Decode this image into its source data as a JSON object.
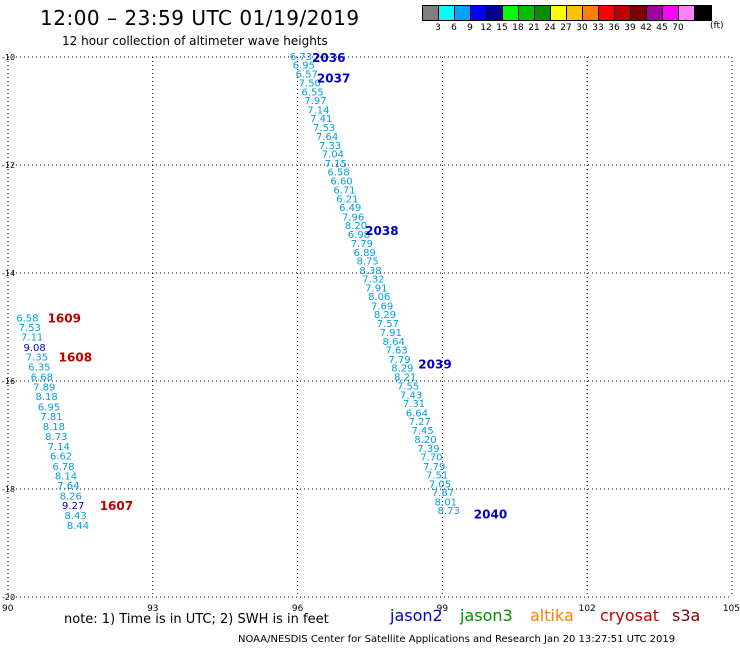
{
  "header": {
    "title": "12:00 – 23:59 UTC 01/19/2019",
    "subtitle": "12 hour collection of altimeter wave heights"
  },
  "legend": {
    "colors": [
      "#808080",
      "#00ffff",
      "#00a0ff",
      "#0000ff",
      "#000090",
      "#00ff00",
      "#00c000",
      "#009000",
      "#ffff00",
      "#ffc000",
      "#ff8000",
      "#ff0000",
      "#c00000",
      "#800000",
      "#a000a0",
      "#ff00ff",
      "#ff80ff",
      "#000000"
    ],
    "labels": [
      "3",
      "6",
      "9",
      "12",
      "15",
      "18",
      "21",
      "24",
      "27",
      "30",
      "33",
      "36",
      "39",
      "42",
      "45",
      "70"
    ],
    "unit": "(ft)"
  },
  "footer": {
    "note": "note:  1) Time is in UTC;  2) SWH is in feet",
    "satellites": [
      {
        "name": "jason2",
        "color": "#0000c8"
      },
      {
        "name": "jason3",
        "color": "#009000"
      },
      {
        "name": "altika",
        "color": "#ff8000"
      },
      {
        "name": "cryosat",
        "color": "#c00000"
      },
      {
        "name": "s3a",
        "color": "#800000"
      }
    ],
    "credit": "NOAA/NESDIS Center for Satellite Applications and Research    Jan 20 13:27:51 UTC 2019"
  },
  "chart_data": {
    "type": "scatter",
    "xlim": [
      90,
      105
    ],
    "ylim": [
      -20,
      -10
    ],
    "x_ticks": [
      "90",
      "93",
      "96",
      "99",
      "102",
      "105"
    ],
    "y_ticks": [
      "-10",
      "-12",
      "-14",
      "-16",
      "-18",
      "-20"
    ],
    "grid": true,
    "series": [
      {
        "name": "jason2",
        "color": "#00a0e0",
        "points": [
          {
            "x": 95.84,
            "y": -9.98,
            "v": "6.73"
          },
          {
            "x": 95.9,
            "y": -10.14,
            "v": "6.95"
          },
          {
            "x": 95.96,
            "y": -10.31,
            "v": "6.57"
          },
          {
            "x": 96.02,
            "y": -10.47,
            "v": "7.50"
          },
          {
            "x": 96.08,
            "y": -10.64,
            "v": "6.55"
          },
          {
            "x": 96.14,
            "y": -10.8,
            "v": "7.97"
          },
          {
            "x": 96.2,
            "y": -10.97,
            "v": "7.14"
          },
          {
            "x": 96.26,
            "y": -11.13,
            "v": "7.41"
          },
          {
            "x": 96.32,
            "y": -11.3,
            "v": "7.53"
          },
          {
            "x": 96.38,
            "y": -11.46,
            "v": "7.64"
          },
          {
            "x": 96.44,
            "y": -11.63,
            "v": "7.33"
          },
          {
            "x": 96.5,
            "y": -11.79,
            "v": "7.04"
          },
          {
            "x": 96.56,
            "y": -11.96,
            "v": "7.15"
          },
          {
            "x": 96.62,
            "y": -12.12,
            "v": "6.58"
          },
          {
            "x": 96.68,
            "y": -12.29,
            "v": "6.60"
          },
          {
            "x": 96.74,
            "y": -12.45,
            "v": "6.71"
          },
          {
            "x": 96.8,
            "y": -12.62,
            "v": "6.21"
          },
          {
            "x": 96.86,
            "y": -12.78,
            "v": "6.49"
          },
          {
            "x": 96.92,
            "y": -12.95,
            "v": "7.96"
          },
          {
            "x": 96.98,
            "y": -13.11,
            "v": "8.20"
          },
          {
            "x": 97.04,
            "y": -13.28,
            "v": "6.98"
          },
          {
            "x": 97.1,
            "y": -13.44,
            "v": "7.79"
          },
          {
            "x": 97.16,
            "y": -13.61,
            "v": "6.89"
          },
          {
            "x": 97.22,
            "y": -13.77,
            "v": "8.75"
          },
          {
            "x": 97.28,
            "y": -13.94,
            "v": "8.38"
          },
          {
            "x": 97.34,
            "y": -14.1,
            "v": "7.32"
          },
          {
            "x": 97.4,
            "y": -14.27,
            "v": "7.91"
          },
          {
            "x": 97.46,
            "y": -14.43,
            "v": "8.06"
          },
          {
            "x": 97.52,
            "y": -14.6,
            "v": "7.69"
          },
          {
            "x": 97.58,
            "y": -14.76,
            "v": "8.29"
          },
          {
            "x": 97.64,
            "y": -14.93,
            "v": "7.57"
          },
          {
            "x": 97.7,
            "y": -15.09,
            "v": "7.91"
          },
          {
            "x": 97.76,
            "y": -15.26,
            "v": "8.64"
          },
          {
            "x": 97.82,
            "y": -15.42,
            "v": "7.63"
          },
          {
            "x": 97.88,
            "y": -15.59,
            "v": "7.79"
          },
          {
            "x": 97.94,
            "y": -15.75,
            "v": "8.29"
          },
          {
            "x": 98.0,
            "y": -15.92,
            "v": "8.21"
          },
          {
            "x": 98.06,
            "y": -16.08,
            "v": "7.55"
          },
          {
            "x": 98.12,
            "y": -16.25,
            "v": "7.43"
          },
          {
            "x": 98.18,
            "y": -16.41,
            "v": "7.31"
          },
          {
            "x": 98.24,
            "y": -16.58,
            "v": "6.64"
          },
          {
            "x": 98.3,
            "y": -16.74,
            "v": "7.27"
          },
          {
            "x": 98.36,
            "y": -16.91,
            "v": "7.45"
          },
          {
            "x": 98.42,
            "y": -17.07,
            "v": "8.20"
          },
          {
            "x": 98.48,
            "y": -17.24,
            "v": "7.39"
          },
          {
            "x": 98.54,
            "y": -17.4,
            "v": "7.70"
          },
          {
            "x": 98.6,
            "y": -17.57,
            "v": "7.79"
          },
          {
            "x": 98.66,
            "y": -17.73,
            "v": "7.51"
          },
          {
            "x": 98.72,
            "y": -17.9,
            "v": "7.05"
          },
          {
            "x": 98.78,
            "y": -18.06,
            "v": "7.87"
          },
          {
            "x": 98.84,
            "y": -18.23,
            "v": "8.01"
          },
          {
            "x": 98.9,
            "y": -18.39,
            "v": "8.73"
          }
        ],
        "time_labels": [
          {
            "x": 96.3,
            "y": -10.0,
            "label": "2036"
          },
          {
            "x": 96.4,
            "y": -10.38,
            "label": "2037"
          },
          {
            "x": 97.4,
            "y": -13.2,
            "label": "2038"
          },
          {
            "x": 98.5,
            "y": -15.68,
            "label": "2039"
          },
          {
            "x": 99.65,
            "y": -18.45,
            "label": "2040"
          }
        ]
      },
      {
        "name": "cryosat",
        "color": "#00a0e0",
        "points": [
          {
            "x": 90.17,
            "y": -14.82,
            "v": "6.58"
          },
          {
            "x": 90.22,
            "y": -15.0,
            "v": "7.53"
          },
          {
            "x": 90.27,
            "y": -15.18,
            "v": "7.11"
          },
          {
            "x": 90.32,
            "y": -15.37,
            "v": "9.08"
          },
          {
            "x": 90.37,
            "y": -15.55,
            "v": "7.35"
          },
          {
            "x": 90.42,
            "y": -15.73,
            "v": "6.35"
          },
          {
            "x": 90.47,
            "y": -15.92,
            "v": "6.68"
          },
          {
            "x": 90.52,
            "y": -16.1,
            "v": "7.89"
          },
          {
            "x": 90.57,
            "y": -16.28,
            "v": "8.18"
          },
          {
            "x": 90.62,
            "y": -16.47,
            "v": "6.95"
          },
          {
            "x": 90.67,
            "y": -16.65,
            "v": "7.81"
          },
          {
            "x": 90.72,
            "y": -16.83,
            "v": "8.18"
          },
          {
            "x": 90.77,
            "y": -17.02,
            "v": "8.73"
          },
          {
            "x": 90.82,
            "y": -17.2,
            "v": "7.14"
          },
          {
            "x": 90.87,
            "y": -17.38,
            "v": "6.62"
          },
          {
            "x": 90.92,
            "y": -17.57,
            "v": "6.78"
          },
          {
            "x": 90.97,
            "y": -17.75,
            "v": "8.14"
          },
          {
            "x": 91.02,
            "y": -17.93,
            "v": "7.64"
          },
          {
            "x": 91.07,
            "y": -18.12,
            "v": "8.26"
          },
          {
            "x": 91.12,
            "y": -18.3,
            "v": "9.27"
          },
          {
            "x": 91.17,
            "y": -18.48,
            "v": "8.43"
          },
          {
            "x": 91.22,
            "y": -18.67,
            "v": "8.44"
          }
        ],
        "time_labels": [
          {
            "x": 90.82,
            "y": -14.82,
            "label": "1609"
          },
          {
            "x": 91.05,
            "y": -15.55,
            "label": "1608"
          },
          {
            "x": 91.9,
            "y": -18.3,
            "label": "1607"
          }
        ]
      }
    ]
  }
}
